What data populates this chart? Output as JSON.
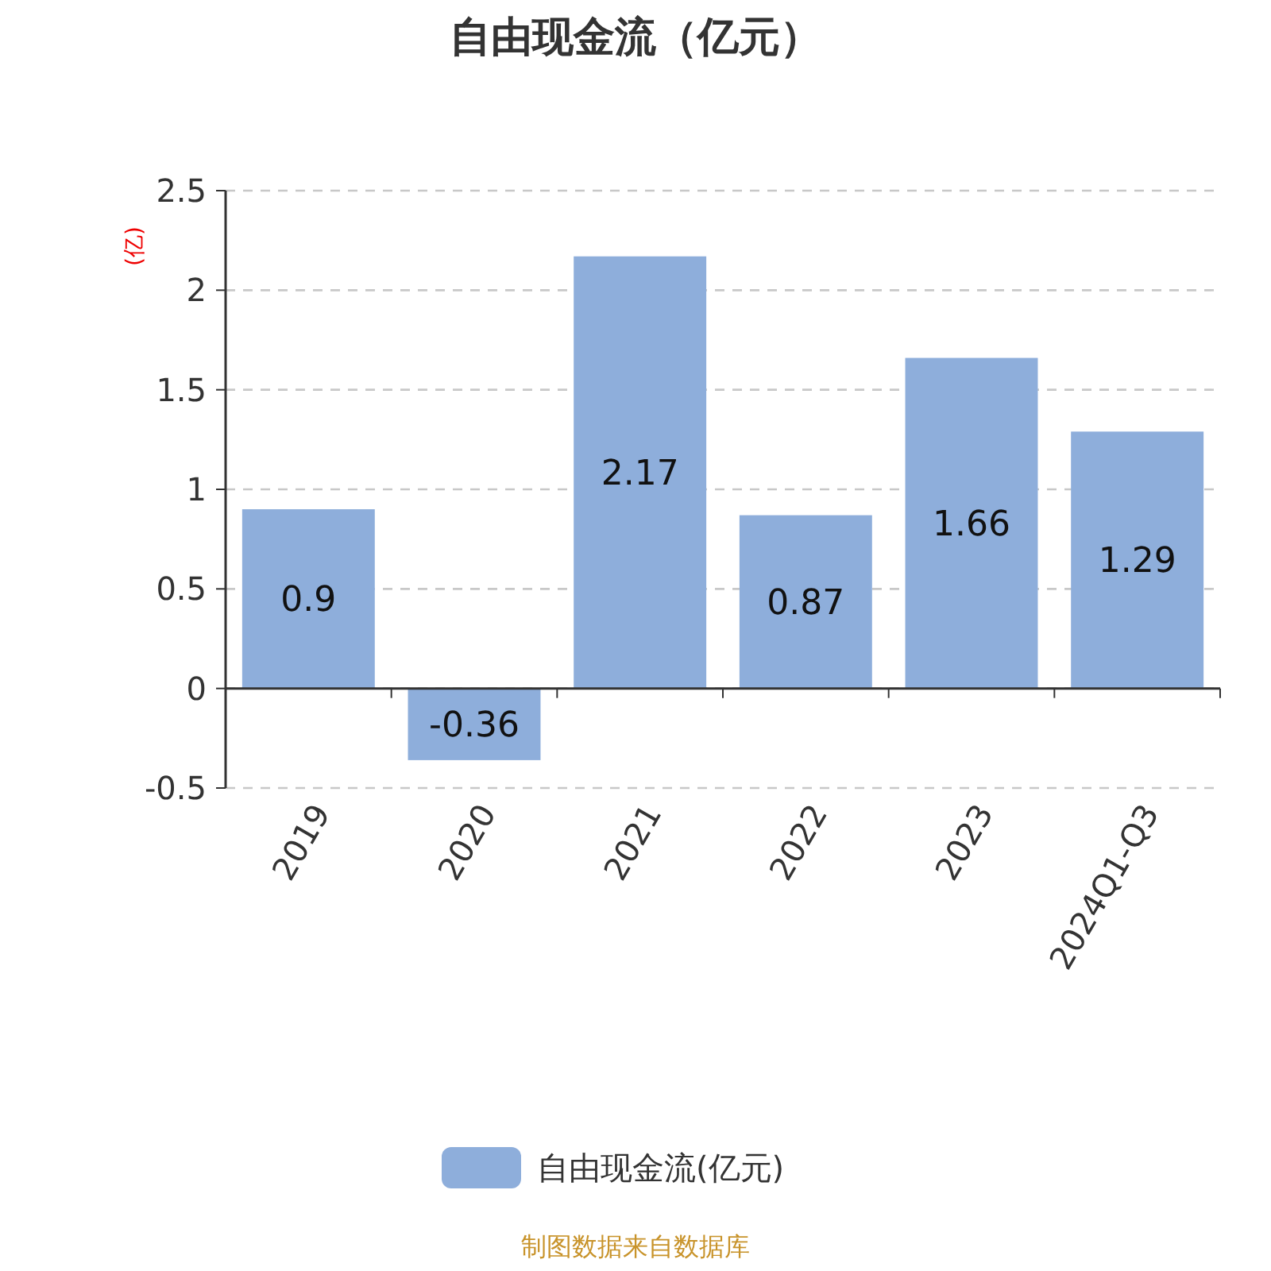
{
  "chart_data": {
    "type": "bar",
    "title": "自由现金流（亿元）",
    "ylabel": "(亿)",
    "categories": [
      "2019",
      "2020",
      "2021",
      "2022",
      "2023",
      "2024Q1-Q3"
    ],
    "series": [
      {
        "name": "自由现金流(亿元)",
        "color": "#8eaedb",
        "values": [
          0.9,
          -0.36,
          2.17,
          0.87,
          1.66,
          1.29
        ]
      }
    ],
    "ylim": [
      -0.5,
      2.5
    ],
    "yticks": [
      -0.5,
      0,
      0.5,
      1,
      1.5,
      2,
      2.5
    ],
    "grid": "y",
    "legend": "bottom",
    "data_labels": true,
    "annotations": [
      "制图数据来自数据库"
    ]
  }
}
